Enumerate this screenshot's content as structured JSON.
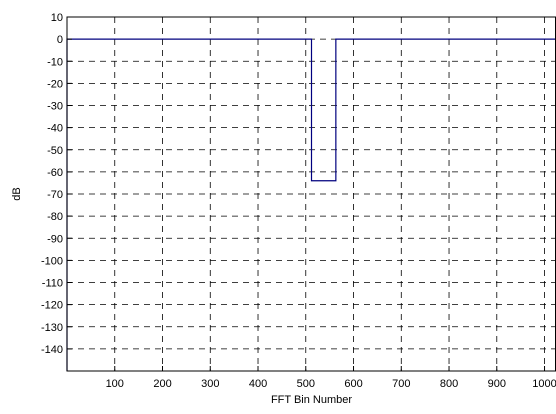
{
  "chart_data": {
    "type": "line",
    "title": "",
    "xlabel": "FFT Bin Number",
    "ylabel": "dB",
    "xlim": [
      0,
      1024
    ],
    "ylim": [
      -150,
      10
    ],
    "grid": true,
    "x_ticks": [
      100,
      200,
      300,
      400,
      500,
      600,
      700,
      800,
      900,
      1000
    ],
    "x_tick_labels": [
      "100",
      "200",
      "300",
      "400",
      "500",
      "600",
      "700",
      "800",
      "900",
      "1000"
    ],
    "y_ticks": [
      10,
      0,
      -10,
      -20,
      -30,
      -40,
      -50,
      -60,
      -70,
      -80,
      -90,
      -100,
      -110,
      -120,
      -130,
      -140
    ],
    "y_tick_labels": [
      "10",
      "0",
      "-10",
      "-20",
      "-30",
      "-40",
      "-50",
      "-60",
      "-70",
      "-80",
      "-90",
      "-100",
      "-110",
      "-120",
      "-130",
      "-140"
    ],
    "series": [
      {
        "color": "#00007f",
        "x": [
          0,
          0,
          512,
          512,
          563,
          563,
          1024
        ],
        "y": [
          -150,
          0,
          0,
          -64,
          -64,
          0,
          0
        ]
      }
    ]
  }
}
